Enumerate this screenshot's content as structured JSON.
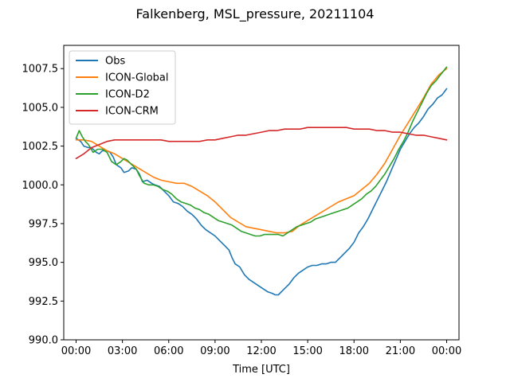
{
  "chart_data": {
    "type": "line",
    "title": "Falkenberg, MSL_pressure, 20211104",
    "xlabel": "Time [UTC]",
    "ylabel": "",
    "xlim": [
      -0.8,
      24.8
    ],
    "ylim": [
      990.0,
      1009.0
    ],
    "x_ticks": [
      0,
      3,
      6,
      9,
      12,
      15,
      18,
      21,
      24
    ],
    "x_tick_labels": [
      "00:00",
      "03:00",
      "06:00",
      "09:00",
      "12:00",
      "15:00",
      "18:00",
      "21:00",
      "00:00"
    ],
    "y_ticks": [
      990.0,
      992.5,
      995.0,
      997.5,
      1000.0,
      1002.5,
      1005.0,
      1007.5
    ],
    "y_tick_labels": [
      "990.0",
      "992.5",
      "995.0",
      "997.5",
      "1000.0",
      "1002.5",
      "1005.0",
      "1007.5"
    ],
    "grid": false,
    "legend_position": "top-left",
    "series": [
      {
        "name": "Obs",
        "color": "#1f77b4",
        "points": [
          [
            0,
            1003.0
          ],
          [
            0.3,
            1002.8
          ],
          [
            0.5,
            1002.5
          ],
          [
            0.8,
            1002.4
          ],
          [
            1.0,
            1002.4
          ],
          [
            1.3,
            1002.1
          ],
          [
            1.5,
            1002.0
          ],
          [
            1.7,
            1002.2
          ],
          [
            2.0,
            1002.2
          ],
          [
            2.2,
            1002.1
          ],
          [
            2.4,
            1001.8
          ],
          [
            2.6,
            1001.3
          ],
          [
            2.9,
            1001.1
          ],
          [
            3.1,
            1000.8
          ],
          [
            3.4,
            1000.9
          ],
          [
            3.6,
            1001.1
          ],
          [
            3.9,
            1001.0
          ],
          [
            4.1,
            1000.7
          ],
          [
            4.3,
            1000.2
          ],
          [
            4.6,
            1000.3
          ],
          [
            4.9,
            1000.1
          ],
          [
            5.1,
            1000.0
          ],
          [
            5.4,
            999.9
          ],
          [
            5.7,
            999.6
          ],
          [
            6.0,
            999.3
          ],
          [
            6.3,
            998.9
          ],
          [
            6.6,
            998.8
          ],
          [
            6.9,
            998.6
          ],
          [
            7.2,
            998.3
          ],
          [
            7.5,
            998.1
          ],
          [
            7.8,
            997.8
          ],
          [
            8.1,
            997.4
          ],
          [
            8.4,
            997.1
          ],
          [
            8.7,
            996.9
          ],
          [
            9.0,
            996.7
          ],
          [
            9.3,
            996.4
          ],
          [
            9.6,
            996.1
          ],
          [
            9.9,
            995.8
          ],
          [
            10.1,
            995.3
          ],
          [
            10.3,
            994.9
          ],
          [
            10.6,
            994.7
          ],
          [
            10.9,
            994.2
          ],
          [
            11.2,
            993.9
          ],
          [
            11.5,
            993.7
          ],
          [
            11.8,
            993.5
          ],
          [
            12.1,
            993.3
          ],
          [
            12.4,
            993.1
          ],
          [
            12.7,
            993.0
          ],
          [
            12.9,
            992.9
          ],
          [
            13.1,
            992.9
          ],
          [
            13.3,
            993.1
          ],
          [
            13.5,
            993.3
          ],
          [
            13.8,
            993.6
          ],
          [
            14.1,
            994.0
          ],
          [
            14.4,
            994.3
          ],
          [
            14.7,
            994.5
          ],
          [
            15.0,
            994.7
          ],
          [
            15.3,
            994.8
          ],
          [
            15.6,
            994.8
          ],
          [
            15.9,
            994.9
          ],
          [
            16.2,
            994.9
          ],
          [
            16.5,
            995.0
          ],
          [
            16.8,
            995.0
          ],
          [
            17.1,
            995.3
          ],
          [
            17.4,
            995.6
          ],
          [
            17.7,
            995.9
          ],
          [
            18.0,
            996.3
          ],
          [
            18.3,
            996.9
          ],
          [
            18.6,
            997.3
          ],
          [
            18.9,
            997.8
          ],
          [
            19.2,
            998.4
          ],
          [
            19.5,
            999.0
          ],
          [
            19.8,
            999.6
          ],
          [
            20.1,
            1000.2
          ],
          [
            20.4,
            1000.9
          ],
          [
            20.7,
            1001.6
          ],
          [
            21.0,
            1002.3
          ],
          [
            21.3,
            1002.8
          ],
          [
            21.6,
            1003.3
          ],
          [
            21.9,
            1003.7
          ],
          [
            22.2,
            1004.0
          ],
          [
            22.5,
            1004.4
          ],
          [
            22.8,
            1004.9
          ],
          [
            23.1,
            1005.2
          ],
          [
            23.4,
            1005.6
          ],
          [
            23.7,
            1005.8
          ],
          [
            24.0,
            1006.2
          ]
        ]
      },
      {
        "name": "ICON-Global",
        "color": "#ff7f0e",
        "points": [
          [
            0,
            1002.9
          ],
          [
            0.5,
            1002.9
          ],
          [
            1.0,
            1002.8
          ],
          [
            1.5,
            1002.5
          ],
          [
            2.0,
            1002.2
          ],
          [
            2.5,
            1002.0
          ],
          [
            3.0,
            1001.7
          ],
          [
            3.5,
            1001.4
          ],
          [
            4.0,
            1001.1
          ],
          [
            4.5,
            1000.8
          ],
          [
            5.0,
            1000.5
          ],
          [
            5.5,
            1000.3
          ],
          [
            6.0,
            1000.2
          ],
          [
            6.5,
            1000.1
          ],
          [
            7.0,
            1000.1
          ],
          [
            7.5,
            999.9
          ],
          [
            8.0,
            999.6
          ],
          [
            8.5,
            999.3
          ],
          [
            9.0,
            998.9
          ],
          [
            9.5,
            998.4
          ],
          [
            10.0,
            997.9
          ],
          [
            10.5,
            997.6
          ],
          [
            11.0,
            997.3
          ],
          [
            11.5,
            997.2
          ],
          [
            12.0,
            997.1
          ],
          [
            12.5,
            997.0
          ],
          [
            13.0,
            996.9
          ],
          [
            13.5,
            996.9
          ],
          [
            14.0,
            997.0
          ],
          [
            14.5,
            997.4
          ],
          [
            15.0,
            997.7
          ],
          [
            15.5,
            998.0
          ],
          [
            16.0,
            998.3
          ],
          [
            16.5,
            998.6
          ],
          [
            17.0,
            998.9
          ],
          [
            17.5,
            999.1
          ],
          [
            18.0,
            999.3
          ],
          [
            18.5,
            999.7
          ],
          [
            19.0,
            1000.1
          ],
          [
            19.5,
            1000.7
          ],
          [
            20.0,
            1001.4
          ],
          [
            20.5,
            1002.3
          ],
          [
            21.0,
            1003.2
          ],
          [
            21.5,
            1004.0
          ],
          [
            22.0,
            1004.8
          ],
          [
            22.5,
            1005.6
          ],
          [
            23.0,
            1006.5
          ],
          [
            23.5,
            1007.1
          ],
          [
            24.0,
            1007.5
          ]
        ]
      },
      {
        "name": "ICON-D2",
        "color": "#2ca02c",
        "points": [
          [
            0,
            1003.0
          ],
          [
            0.2,
            1003.5
          ],
          [
            0.4,
            1003.1
          ],
          [
            0.6,
            1002.8
          ],
          [
            0.8,
            1002.6
          ],
          [
            1.1,
            1002.1
          ],
          [
            1.4,
            1002.3
          ],
          [
            1.7,
            1002.3
          ],
          [
            2.0,
            1002.1
          ],
          [
            2.3,
            1001.5
          ],
          [
            2.6,
            1001.3
          ],
          [
            2.9,
            1001.5
          ],
          [
            3.1,
            1001.7
          ],
          [
            3.3,
            1001.6
          ],
          [
            3.6,
            1001.3
          ],
          [
            3.9,
            1001.0
          ],
          [
            4.1,
            1000.6
          ],
          [
            4.4,
            1000.1
          ],
          [
            4.7,
            1000.0
          ],
          [
            5.0,
            1000.0
          ],
          [
            5.3,
            999.9
          ],
          [
            5.6,
            999.7
          ],
          [
            5.9,
            999.6
          ],
          [
            6.2,
            999.4
          ],
          [
            6.5,
            999.1
          ],
          [
            6.8,
            998.9
          ],
          [
            7.1,
            998.8
          ],
          [
            7.4,
            998.7
          ],
          [
            7.7,
            998.5
          ],
          [
            8.0,
            998.4
          ],
          [
            8.3,
            998.2
          ],
          [
            8.6,
            998.1
          ],
          [
            8.9,
            997.9
          ],
          [
            9.2,
            997.7
          ],
          [
            9.5,
            997.6
          ],
          [
            9.8,
            997.5
          ],
          [
            10.1,
            997.4
          ],
          [
            10.4,
            997.2
          ],
          [
            10.7,
            997.0
          ],
          [
            11.0,
            996.9
          ],
          [
            11.3,
            996.8
          ],
          [
            11.6,
            996.7
          ],
          [
            11.9,
            996.7
          ],
          [
            12.2,
            996.8
          ],
          [
            12.5,
            996.8
          ],
          [
            12.8,
            996.8
          ],
          [
            13.1,
            996.8
          ],
          [
            13.4,
            996.7
          ],
          [
            13.7,
            996.9
          ],
          [
            14.0,
            997.1
          ],
          [
            14.3,
            997.3
          ],
          [
            14.6,
            997.4
          ],
          [
            14.9,
            997.5
          ],
          [
            15.2,
            997.6
          ],
          [
            15.5,
            997.8
          ],
          [
            15.8,
            997.9
          ],
          [
            16.1,
            998.0
          ],
          [
            16.4,
            998.1
          ],
          [
            16.7,
            998.2
          ],
          [
            17.0,
            998.3
          ],
          [
            17.3,
            998.4
          ],
          [
            17.6,
            998.5
          ],
          [
            17.9,
            998.7
          ],
          [
            18.2,
            998.9
          ],
          [
            18.5,
            999.1
          ],
          [
            18.8,
            999.4
          ],
          [
            19.1,
            999.6
          ],
          [
            19.4,
            999.9
          ],
          [
            19.7,
            1000.3
          ],
          [
            20.0,
            1000.7
          ],
          [
            20.3,
            1001.2
          ],
          [
            20.6,
            1001.7
          ],
          [
            20.9,
            1002.3
          ],
          [
            21.2,
            1002.8
          ],
          [
            21.5,
            1003.4
          ],
          [
            21.8,
            1004.1
          ],
          [
            22.1,
            1004.7
          ],
          [
            22.4,
            1005.3
          ],
          [
            22.7,
            1005.9
          ],
          [
            23.0,
            1006.4
          ],
          [
            23.3,
            1006.7
          ],
          [
            23.6,
            1007.1
          ],
          [
            24.0,
            1007.6
          ]
        ]
      },
      {
        "name": "ICON-CRM",
        "color": "#d62728",
        "points": [
          [
            0,
            1001.7
          ],
          [
            0.5,
            1002.0
          ],
          [
            1.0,
            1002.4
          ],
          [
            1.5,
            1002.6
          ],
          [
            2.0,
            1002.8
          ],
          [
            2.5,
            1002.9
          ],
          [
            3.0,
            1002.9
          ],
          [
            3.5,
            1002.9
          ],
          [
            4.0,
            1002.9
          ],
          [
            4.5,
            1002.9
          ],
          [
            5.0,
            1002.9
          ],
          [
            5.5,
            1002.9
          ],
          [
            6.0,
            1002.8
          ],
          [
            6.5,
            1002.8
          ],
          [
            7.0,
            1002.8
          ],
          [
            7.5,
            1002.8
          ],
          [
            8.0,
            1002.8
          ],
          [
            8.5,
            1002.9
          ],
          [
            9.0,
            1002.9
          ],
          [
            9.5,
            1003.0
          ],
          [
            10.0,
            1003.1
          ],
          [
            10.5,
            1003.2
          ],
          [
            11.0,
            1003.2
          ],
          [
            11.5,
            1003.3
          ],
          [
            12.0,
            1003.4
          ],
          [
            12.5,
            1003.5
          ],
          [
            13.0,
            1003.5
          ],
          [
            13.5,
            1003.6
          ],
          [
            14.0,
            1003.6
          ],
          [
            14.5,
            1003.6
          ],
          [
            15.0,
            1003.7
          ],
          [
            15.5,
            1003.7
          ],
          [
            16.0,
            1003.7
          ],
          [
            16.5,
            1003.7
          ],
          [
            17.0,
            1003.7
          ],
          [
            17.5,
            1003.7
          ],
          [
            18.0,
            1003.6
          ],
          [
            18.5,
            1003.6
          ],
          [
            19.0,
            1003.6
          ],
          [
            19.5,
            1003.5
          ],
          [
            20.0,
            1003.5
          ],
          [
            20.5,
            1003.4
          ],
          [
            21.0,
            1003.4
          ],
          [
            21.5,
            1003.3
          ],
          [
            22.0,
            1003.2
          ],
          [
            22.5,
            1003.2
          ],
          [
            23.0,
            1003.1
          ],
          [
            23.5,
            1003.0
          ],
          [
            24.0,
            1002.9
          ]
        ]
      }
    ]
  }
}
